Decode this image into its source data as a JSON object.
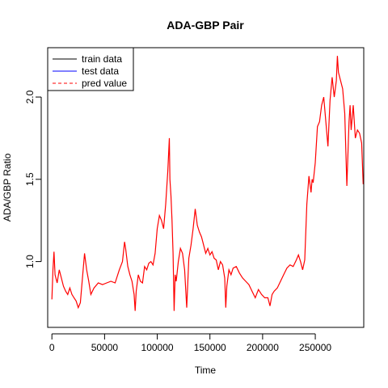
{
  "chart_data": {
    "type": "line",
    "title": "ADA-GBP Pair",
    "xlabel": "Time",
    "ylabel": "ADA/GBP  Ratio",
    "xlim": [
      -4000,
      296000
    ],
    "ylim": [
      0.6,
      2.3
    ],
    "x_ticks": [
      0,
      50000,
      100000,
      150000,
      200000,
      250000
    ],
    "x_tick_labels": [
      "0",
      "50000",
      "100000",
      "150000",
      "200000",
      "250000"
    ],
    "y_ticks": [
      1.0,
      1.5,
      2.0
    ],
    "y_tick_labels": [
      "1.0",
      "1.5",
      "2.0"
    ],
    "grid": false,
    "legend": {
      "position": "top-left",
      "entries": [
        {
          "label": "train data",
          "color": "#000000",
          "style": "solid"
        },
        {
          "label": "test data",
          "color": "#0000ff",
          "style": "solid"
        },
        {
          "label": "pred value",
          "color": "#ff0000",
          "style": "dashed"
        }
      ]
    },
    "series": [
      {
        "name": "pred value",
        "color": "#ff0000",
        "x": [
          0,
          1000,
          2000,
          3000,
          5000,
          7000,
          9000,
          11000,
          13000,
          15000,
          17000,
          19000,
          21000,
          23000,
          25000,
          27000,
          29000,
          31000,
          33000,
          35000,
          37000,
          40000,
          44000,
          48000,
          52000,
          56000,
          60000,
          64000,
          67000,
          69000,
          70000,
          72000,
          74000,
          76000,
          78000,
          79000,
          80000,
          82000,
          84000,
          86000,
          88000,
          90000,
          92000,
          94000,
          96000,
          98000,
          100000,
          102000,
          104000,
          106000,
          108000,
          110000,
          111500,
          112000,
          113000,
          114000,
          115000,
          116000,
          117000,
          118000,
          120000,
          122000,
          124000,
          126000,
          128000,
          130000,
          132000,
          134000,
          136000,
          138000,
          140000,
          142000,
          144000,
          146000,
          148000,
          150000,
          152000,
          154000,
          156000,
          158000,
          160000,
          162000,
          164000,
          165000,
          166000,
          168000,
          170000,
          172000,
          175000,
          178000,
          181000,
          184000,
          187000,
          190000,
          193000,
          196000,
          199000,
          202000,
          205000,
          207000,
          209000,
          211000,
          214000,
          217000,
          220000,
          223000,
          226000,
          229000,
          232000,
          234000,
          236000,
          238000,
          240000,
          242000,
          244000,
          246000,
          247000,
          248000,
          250000,
          252000,
          254000,
          256000,
          258000,
          260000,
          262000,
          264000,
          266000,
          268000,
          270000,
          271000,
          272000,
          274000,
          276000,
          278000,
          280000,
          282000,
          283000,
          284000,
          286000,
          288000,
          290000,
          292000,
          294000,
          295500
        ],
        "y": [
          0.77,
          0.95,
          1.06,
          0.92,
          0.87,
          0.95,
          0.9,
          0.85,
          0.82,
          0.8,
          0.84,
          0.8,
          0.78,
          0.76,
          0.72,
          0.75,
          0.9,
          1.05,
          0.95,
          0.88,
          0.8,
          0.84,
          0.87,
          0.86,
          0.87,
          0.88,
          0.87,
          0.95,
          1.0,
          1.12,
          1.08,
          0.97,
          0.92,
          0.88,
          0.8,
          0.7,
          0.82,
          0.92,
          0.88,
          0.87,
          0.97,
          0.95,
          0.99,
          1.0,
          0.98,
          1.05,
          1.2,
          1.28,
          1.25,
          1.2,
          1.35,
          1.55,
          1.75,
          1.5,
          1.4,
          1.25,
          1.05,
          0.7,
          0.92,
          0.88,
          1.0,
          1.08,
          1.05,
          0.95,
          0.72,
          1.02,
          1.1,
          1.2,
          1.32,
          1.22,
          1.18,
          1.15,
          1.1,
          1.05,
          1.08,
          1.04,
          1.06,
          1.02,
          1.01,
          0.95,
          1.0,
          0.98,
          0.9,
          0.72,
          0.85,
          0.95,
          0.92,
          0.96,
          0.97,
          0.93,
          0.9,
          0.88,
          0.86,
          0.82,
          0.78,
          0.83,
          0.8,
          0.78,
          0.78,
          0.73,
          0.8,
          0.82,
          0.84,
          0.88,
          0.92,
          0.96,
          0.98,
          0.97,
          1.01,
          1.04,
          1.0,
          0.95,
          1.01,
          1.35,
          1.52,
          1.42,
          1.5,
          1.48,
          1.6,
          1.82,
          1.85,
          1.95,
          2.0,
          1.85,
          1.7,
          1.98,
          2.12,
          2.0,
          2.1,
          2.25,
          2.15,
          2.1,
          2.05,
          1.9,
          1.46,
          1.85,
          1.95,
          1.8,
          1.95,
          1.75,
          1.8,
          1.78,
          1.72,
          1.47
        ]
      }
    ]
  }
}
